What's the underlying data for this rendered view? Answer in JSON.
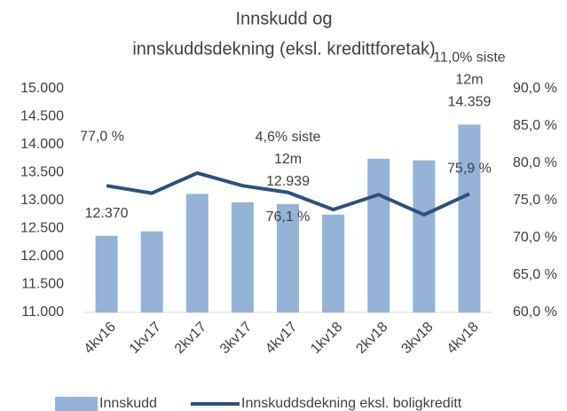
{
  "chart_data": {
    "type": "bar_line",
    "title": [
      "Innskudd og",
      "innskuddsdekning (eksl. kredittforetak)"
    ],
    "categories": [
      "4kv16",
      "1kv17",
      "2kv17",
      "3kv17",
      "4kv17",
      "1kv18",
      "2kv18",
      "3kv18",
      "4kv18"
    ],
    "series": [
      {
        "name": "Innskudd",
        "type": "bar",
        "color": "#95b3d7",
        "values": [
          12370,
          12450,
          13120,
          12970,
          12939,
          12750,
          13750,
          13720,
          14359
        ],
        "value_labels": [
          "12.370",
          null,
          null,
          null,
          "12.939",
          null,
          null,
          null,
          "14.359"
        ]
      },
      {
        "name": "Innskuddsdekning eksl. boligkreditt",
        "type": "line",
        "axis": "y2",
        "color": "#2f4f7f",
        "values": [
          77.0,
          76.0,
          78.7,
          77.0,
          76.1,
          73.8,
          75.8,
          73.1,
          75.9
        ],
        "value_labels": [
          "77,0 %",
          null,
          null,
          null,
          "76,1 %",
          null,
          null,
          null,
          "75,9 %"
        ]
      }
    ],
    "annotations": [
      {
        "category": "4kv17",
        "lines": [
          "4,6% siste",
          "12m"
        ]
      },
      {
        "category": "4kv18",
        "lines": [
          "11,0% siste",
          "12m"
        ]
      }
    ],
    "ylim": [
      11000,
      15000
    ],
    "yticks": [
      {
        "value": 11000,
        "label": "11.000"
      },
      {
        "value": 11500,
        "label": "11.500"
      },
      {
        "value": 12000,
        "label": "12.000"
      },
      {
        "value": 12500,
        "label": "12.500"
      },
      {
        "value": 13000,
        "label": "13.000"
      },
      {
        "value": 13500,
        "label": "13.500"
      },
      {
        "value": 14000,
        "label": "14.000"
      },
      {
        "value": 14500,
        "label": "14.500"
      },
      {
        "value": 15000,
        "label": "15.000"
      }
    ],
    "y2lim": [
      60,
      90
    ],
    "y2ticks": [
      {
        "value": 60,
        "label": "60,0 %"
      },
      {
        "value": 65,
        "label": "65,0 %"
      },
      {
        "value": 70,
        "label": "70,0 %"
      },
      {
        "value": 75,
        "label": "75,0 %"
      },
      {
        "value": 80,
        "label": "80,0 %"
      },
      {
        "value": 85,
        "label": "85,0 %"
      },
      {
        "value": 90,
        "label": "90,0 %"
      }
    ],
    "grid": false,
    "legend": "bottom"
  }
}
